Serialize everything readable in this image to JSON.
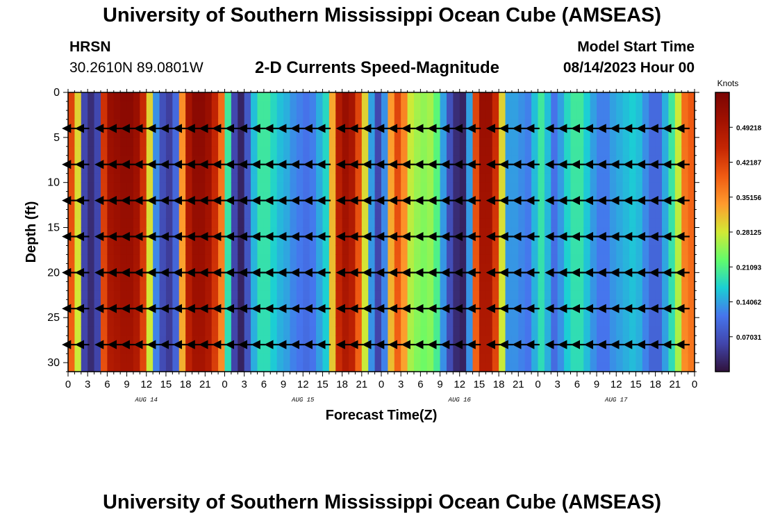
{
  "header": {
    "title": "University of Southern Mississippi Ocean Cube (AMSEAS)",
    "station": "HRSN",
    "coords": "30.2610N  89.0801W",
    "model_start_label": "Model Start Time",
    "model_start_value": "08/14/2023 Hour 00"
  },
  "footer": {
    "title": "University of Southern Mississippi Ocean Cube (AMSEAS)"
  },
  "chart_data": {
    "type": "heatmap",
    "title": "2-D Currents Speed-Magnitude",
    "xlabel": "Forecast Time(Z)",
    "ylabel": "Depth (ft)",
    "xlim": [
      0,
      96
    ],
    "ylim": [
      31,
      0
    ],
    "x_tick_labels": [
      "0",
      "3",
      "6",
      "9",
      "12",
      "15",
      "18",
      "21",
      "0",
      "3",
      "6",
      "9",
      "12",
      "15",
      "18",
      "21",
      "0",
      "3",
      "6",
      "9",
      "12",
      "15",
      "18",
      "21",
      "0",
      "3",
      "6",
      "9",
      "12",
      "15",
      "18",
      "21",
      "0"
    ],
    "day_labels": [
      "AUG 14",
      "AUG 15",
      "AUG 16",
      "AUG 17"
    ],
    "y_ticks": [
      0,
      5,
      10,
      15,
      20,
      25,
      30
    ],
    "colorbar": {
      "unit": "Knots",
      "range": [
        0,
        0.5625
      ],
      "ticks": [
        "0.07031",
        "0.14062",
        "0.21093",
        "0.28125",
        "0.35156",
        "0.42187",
        "0.49218"
      ]
    },
    "speed_profile": {
      "hours": [
        0,
        1,
        2,
        3,
        4,
        5,
        6,
        7,
        8,
        9,
        10,
        11,
        12,
        13,
        14,
        15,
        16,
        17,
        18,
        19,
        20,
        21,
        22,
        23,
        24,
        25,
        26,
        27,
        28,
        29,
        30,
        31,
        32,
        33,
        34,
        35,
        36,
        37,
        38,
        39,
        40,
        41,
        42,
        43,
        44,
        45,
        46,
        47,
        48,
        49,
        50,
        51,
        52,
        53,
        54,
        55,
        56,
        57,
        58,
        59,
        60,
        61,
        62,
        63,
        64,
        65,
        66,
        67,
        68,
        69,
        70,
        71,
        72,
        73,
        74,
        75,
        76,
        77,
        78,
        79,
        80,
        81,
        82,
        83,
        84,
        85,
        86,
        87,
        88,
        89,
        90,
        91,
        92,
        93,
        94,
        95
      ],
      "knots": [
        0.42,
        0.3,
        0.06,
        0.03,
        0.06,
        0.44,
        0.52,
        0.53,
        0.54,
        0.54,
        0.52,
        0.45,
        0.3,
        0.13,
        0.07,
        0.05,
        0.1,
        0.35,
        0.5,
        0.54,
        0.54,
        0.52,
        0.46,
        0.38,
        0.2,
        0.06,
        0.02,
        0.08,
        0.16,
        0.2,
        0.2,
        0.18,
        0.16,
        0.15,
        0.13,
        0.12,
        0.11,
        0.12,
        0.15,
        0.18,
        0.33,
        0.48,
        0.52,
        0.5,
        0.42,
        0.3,
        0.14,
        0.06,
        0.13,
        0.34,
        0.42,
        0.36,
        0.28,
        0.26,
        0.25,
        0.26,
        0.22,
        0.14,
        0.07,
        0.03,
        0.02,
        0.14,
        0.42,
        0.52,
        0.52,
        0.45,
        0.3,
        0.14,
        0.14,
        0.13,
        0.12,
        0.16,
        0.2,
        0.16,
        0.11,
        0.14,
        0.18,
        0.2,
        0.2,
        0.17,
        0.14,
        0.12,
        0.12,
        0.14,
        0.15,
        0.16,
        0.17,
        0.16,
        0.13,
        0.1,
        0.1,
        0.15,
        0.2,
        0.28,
        0.38,
        0.4
      ]
    },
    "arrow_depths_ft": [
      4,
      8,
      12,
      16,
      20,
      24,
      28
    ],
    "arrow_directions": [
      {
        "hours": [
          0,
          2,
          5,
          7,
          9,
          11,
          13,
          15,
          17,
          19,
          21,
          23
        ],
        "dir": "left"
      },
      {
        "hours": [
          25,
          27,
          29,
          31,
          33,
          35,
          37,
          39
        ],
        "dir": "left"
      },
      {
        "hours": [
          42,
          44,
          46,
          48
        ],
        "dir": "left"
      },
      {
        "hours": [
          50,
          52,
          54,
          56,
          58,
          60,
          62
        ],
        "dir": "left"
      },
      {
        "hours": [
          65,
          67,
          69,
          71
        ],
        "dir": "left"
      },
      {
        "hours": [
          74,
          76,
          78,
          80,
          82,
          84,
          86,
          88,
          90,
          92,
          94
        ],
        "dir": "left"
      }
    ]
  }
}
